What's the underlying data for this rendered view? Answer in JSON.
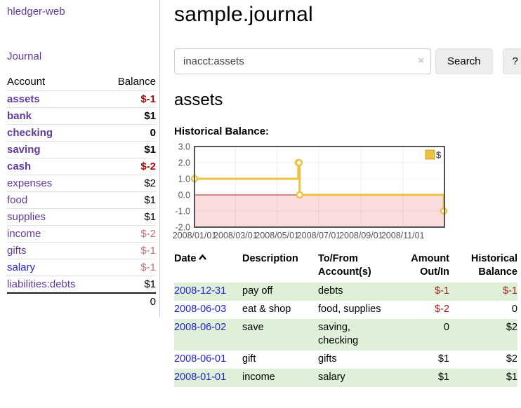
{
  "app_title": "hledger-web",
  "sidebar": {
    "journal_link": "Journal",
    "accounts": {
      "col_account": "Account",
      "col_balance": "Balance",
      "rows": [
        {
          "name": "assets",
          "balance": "$-1",
          "indent": 1,
          "emph": true,
          "name_style": "purple",
          "bal_style": "neg-strong"
        },
        {
          "name": "bank",
          "balance": "$1",
          "indent": 2,
          "emph": true,
          "name_style": "purple",
          "bal_style": "pos"
        },
        {
          "name": "checking",
          "balance": "0",
          "indent": 3,
          "emph": true,
          "name_style": "purple",
          "bal_style": "pos"
        },
        {
          "name": "saving",
          "balance": "$1",
          "indent": 3,
          "emph": true,
          "name_style": "purple",
          "bal_style": "pos"
        },
        {
          "name": "cash",
          "balance": "$-2",
          "indent": 2,
          "emph": true,
          "name_style": "purple",
          "bal_style": "neg-strong"
        },
        {
          "name": "expenses",
          "balance": "$2",
          "indent": 1,
          "emph": false,
          "name_style": "purple",
          "bal_style": "pos"
        },
        {
          "name": "food",
          "balance": "$1",
          "indent": 2,
          "emph": false,
          "name_style": "purple",
          "bal_style": "pos"
        },
        {
          "name": "supplies",
          "balance": "$1",
          "indent": 2,
          "emph": false,
          "name_style": "purple",
          "bal_style": "pos"
        },
        {
          "name": "income",
          "balance": "$-2",
          "indent": 1,
          "emph": false,
          "name_style": "purple",
          "bal_style": "neg-muted"
        },
        {
          "name": "gifts",
          "balance": "$-1",
          "indent": 2,
          "emph": false,
          "name_style": "purple",
          "bal_style": "neg-muted"
        },
        {
          "name": "salary",
          "balance": "$-1",
          "indent": 2,
          "emph": false,
          "name_style": "blue",
          "bal_style": "neg-muted"
        },
        {
          "name": "liabilities:debts",
          "balance": "$1",
          "indent": 1,
          "emph": false,
          "name_style": "purple",
          "bal_style": "pos"
        }
      ],
      "total": "0"
    }
  },
  "main": {
    "title": "sample.journal",
    "search": {
      "value": "inacct:assets",
      "clear_icon": "×",
      "search_button": "Search",
      "help_button": "?"
    },
    "account_heading": "assets",
    "chart_heading": "Historical Balance:"
  },
  "chart_data": {
    "type": "line",
    "step": true,
    "title": "Historical Balance:",
    "xlabel": "",
    "ylabel": "",
    "ylim": [
      -2,
      3
    ],
    "yticks": [
      "3.0",
      "2.0",
      "1.0",
      "0.0",
      "-1.0",
      "-2.0"
    ],
    "xrange": [
      "2008-01-01",
      "2009-01-01"
    ],
    "xticks": [
      {
        "date": "2008-01-01",
        "label": "2008/01/01"
      },
      {
        "date": "2008-03-01",
        "label": "2008/03/01"
      },
      {
        "date": "2008-05-01",
        "label": "2008/05/01"
      },
      {
        "date": "2008-07-01",
        "label": "2008/07/01"
      },
      {
        "date": "2008-09-01",
        "label": "2008/09/01"
      },
      {
        "date": "2008-11-01",
        "label": "2008/11/01"
      },
      {
        "date": "2009-01-01",
        "label": ""
      }
    ],
    "grid": true,
    "legend": {
      "label": "$",
      "position": "top-right"
    },
    "series": [
      {
        "name": "$",
        "color": "#EDC240",
        "points": [
          [
            "2008-01-01",
            1
          ],
          [
            "2008-06-01",
            2
          ],
          [
            "2008-06-02",
            2
          ],
          [
            "2008-06-03",
            0
          ],
          [
            "2008-12-31",
            -1
          ]
        ]
      }
    ],
    "negative_fill": "#fbdcdc",
    "zero_line_color": "#9d1f1f",
    "border_color": "#545454"
  },
  "register": {
    "headers": {
      "date": "Date",
      "description": "Description",
      "accounts": "To/From Account(s)",
      "amount": "Amount Out/In",
      "balance": "Historical Balance"
    },
    "sort": "ascending",
    "rows": [
      {
        "date": "2008-12-31",
        "description": "pay off",
        "accounts": "debts",
        "amount": "$-1",
        "balance": "$-1",
        "amount_neg": true,
        "balance_neg": true
      },
      {
        "date": "2008-06-03",
        "description": "eat & shop",
        "accounts": "food, supplies",
        "amount": "$-2",
        "balance": "0",
        "amount_neg": true,
        "balance_neg": false
      },
      {
        "date": "2008-06-02",
        "description": "save",
        "accounts": "saving, checking",
        "amount": "0",
        "balance": "$2",
        "amount_neg": false,
        "balance_neg": false
      },
      {
        "date": "2008-06-01",
        "description": "gift",
        "accounts": "gifts",
        "amount": "$1",
        "balance": "$2",
        "amount_neg": false,
        "balance_neg": false
      },
      {
        "date": "2008-01-01",
        "description": "income",
        "accounts": "salary",
        "amount": "$1",
        "balance": "$1",
        "amount_neg": false,
        "balance_neg": false
      }
    ]
  },
  "colors": {
    "link_purple": "#613a9d",
    "link_blue": "#2323d4",
    "negative_strong": "#a50d0d",
    "negative_muted": "#c27070",
    "negative_table": "#9e1a1a",
    "row_green": "#dff0d8",
    "chart_line": "#EDC240"
  }
}
